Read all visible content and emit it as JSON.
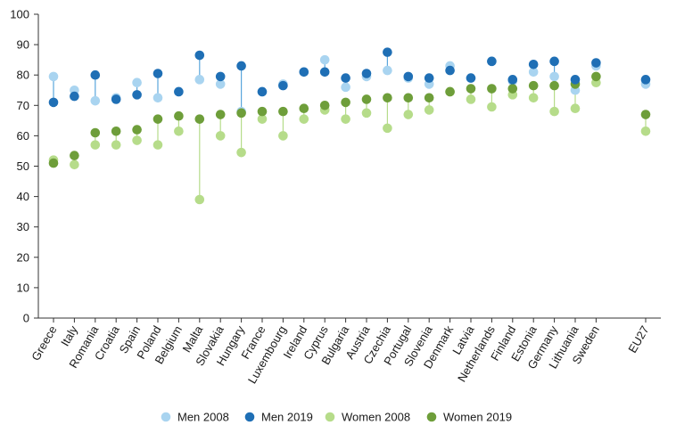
{
  "chart_data": {
    "type": "scatter",
    "title": "",
    "xlabel": "",
    "ylabel": "",
    "ylim": [
      0,
      100
    ],
    "yticks": [
      0,
      10,
      20,
      30,
      40,
      50,
      60,
      70,
      80,
      90,
      100
    ],
    "grid": false,
    "legend_position": "bottom",
    "categories": [
      "Greece",
      "Italy",
      "Romania",
      "Croatia",
      "Spain",
      "Poland",
      "Belgium",
      "Malta",
      "Slovakia",
      "Hungary",
      "France",
      "Luxembourg",
      "Ireland",
      "Cyprus",
      "Bulgaria",
      "Austria",
      "Czechia",
      "Portugal",
      "Slovenia",
      "Denmark",
      "Latvia",
      "Netherlands",
      "Finland",
      "Estonia",
      "Germany",
      "Lithuania",
      "Sweden",
      "EU27"
    ],
    "series": [
      {
        "name": "Men 2008",
        "color": "#a9d4f0",
        "values": [
          79.5,
          75.0,
          71.5,
          72.5,
          77.5,
          72.5,
          74.5,
          78.5,
          77.0,
          68.0,
          74.5,
          77.0,
          81.0,
          85.0,
          76.0,
          79.5,
          81.5,
          79.0,
          77.0,
          83.0,
          79.0,
          84.5,
          78.0,
          81.0,
          79.5,
          75.0,
          83.0,
          77.0
        ]
      },
      {
        "name": "Men 2019",
        "color": "#1f6fb5",
        "values": [
          71.0,
          73.0,
          80.0,
          72.0,
          73.5,
          80.5,
          74.5,
          86.5,
          79.5,
          83.0,
          74.5,
          76.5,
          81.0,
          81.0,
          79.0,
          80.5,
          87.5,
          79.5,
          79.0,
          81.5,
          79.0,
          84.5,
          78.5,
          83.5,
          84.5,
          78.5,
          84.0,
          78.5
        ]
      },
      {
        "name": "Women 2008",
        "color": "#b6dc8a",
        "values": [
          52.0,
          50.5,
          57.0,
          57.0,
          58.5,
          57.0,
          61.5,
          39.0,
          60.0,
          54.5,
          65.5,
          60.0,
          65.5,
          68.5,
          65.5,
          67.5,
          62.5,
          67.0,
          68.5,
          74.5,
          72.0,
          69.5,
          73.5,
          72.5,
          68.0,
          69.0,
          77.5,
          61.5
        ]
      },
      {
        "name": "Women 2019",
        "color": "#6e9e3a",
        "values": [
          51.0,
          53.5,
          61.0,
          61.5,
          62.0,
          65.5,
          66.5,
          65.5,
          67.0,
          67.5,
          68.0,
          68.0,
          69.0,
          70.0,
          71.0,
          72.0,
          72.5,
          72.5,
          72.5,
          74.5,
          75.5,
          75.5,
          75.5,
          76.5,
          76.5,
          77.0,
          79.5,
          67.0
        ]
      }
    ]
  }
}
